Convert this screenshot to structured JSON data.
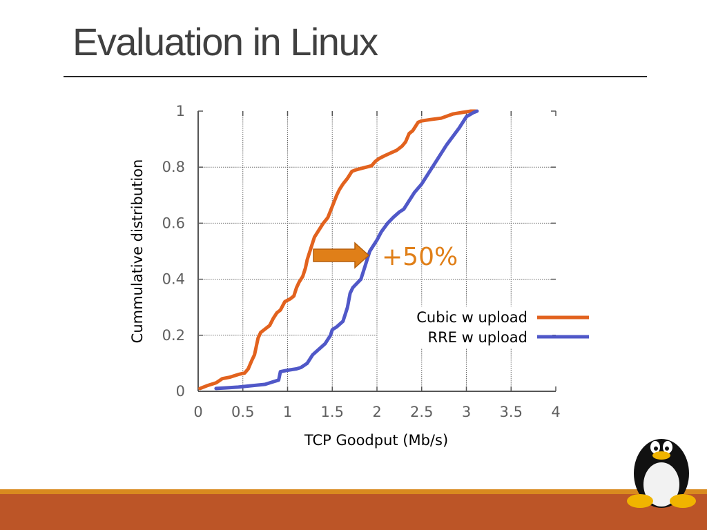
{
  "slide": {
    "title": "Evaluation in Linux"
  },
  "colors": {
    "accent_orange": "#e2621e",
    "series_blue": "#5058c8",
    "arrow": "#e07f18",
    "footer_band": "#bc5527",
    "footer_thin": "#d98a1f"
  },
  "annotation": {
    "text": "+50%",
    "icon": "right-arrow-icon"
  },
  "logo": {
    "name": "tux-penguin-icon"
  },
  "chart_data": {
    "type": "line",
    "title": "",
    "xlabel": "TCP Goodput (Mb/s)",
    "ylabel": "Cummulative distribution",
    "xlim": [
      0,
      4
    ],
    "ylim": [
      0,
      1
    ],
    "xticks": [
      "0",
      "0.5",
      "1",
      "1.5",
      "2",
      "2.5",
      "3",
      "3.5",
      "4"
    ],
    "yticks": [
      "0",
      "0.2",
      "0.4",
      "0.6",
      "0.8",
      "1"
    ],
    "grid": true,
    "legend": "right",
    "series": [
      {
        "name": "Cubic w upload",
        "color": "#e2621e",
        "x": [
          0.02,
          0.1,
          0.2,
          0.27,
          0.35,
          0.45,
          0.52,
          0.56,
          0.6,
          0.63,
          0.67,
          0.7,
          0.74,
          0.8,
          0.84,
          0.88,
          0.92,
          0.97,
          1.03,
          1.07,
          1.1,
          1.13,
          1.17,
          1.2,
          1.22,
          1.25,
          1.27,
          1.3,
          1.34,
          1.4,
          1.45,
          1.5,
          1.55,
          1.58,
          1.62,
          1.67,
          1.72,
          1.76,
          1.82,
          1.88,
          1.94,
          1.98,
          2.02,
          2.08,
          2.15,
          2.22,
          2.28,
          2.32,
          2.36,
          2.4,
          2.46,
          2.5,
          2.6,
          2.72,
          2.85,
          2.95,
          3.05,
          3.1
        ],
        "y": [
          0.01,
          0.02,
          0.03,
          0.045,
          0.05,
          0.06,
          0.065,
          0.08,
          0.11,
          0.13,
          0.19,
          0.21,
          0.22,
          0.235,
          0.26,
          0.28,
          0.29,
          0.32,
          0.33,
          0.34,
          0.37,
          0.39,
          0.41,
          0.44,
          0.47,
          0.5,
          0.52,
          0.55,
          0.57,
          0.6,
          0.62,
          0.66,
          0.7,
          0.72,
          0.74,
          0.76,
          0.785,
          0.79,
          0.795,
          0.8,
          0.805,
          0.82,
          0.83,
          0.84,
          0.85,
          0.86,
          0.875,
          0.89,
          0.92,
          0.93,
          0.96,
          0.965,
          0.97,
          0.975,
          0.99,
          0.995,
          1.0,
          1.0
        ]
      },
      {
        "name": "RRE w upload",
        "color": "#5058c8",
        "x": [
          0.2,
          0.3,
          0.45,
          0.6,
          0.75,
          0.85,
          0.9,
          0.92,
          1.0,
          1.1,
          1.15,
          1.22,
          1.28,
          1.35,
          1.42,
          1.48,
          1.5,
          1.55,
          1.62,
          1.67,
          1.7,
          1.73,
          1.76,
          1.82,
          1.86,
          1.9,
          1.92,
          1.96,
          2.0,
          2.05,
          2.12,
          2.18,
          2.25,
          2.3,
          2.36,
          2.42,
          2.5,
          2.56,
          2.62,
          2.68,
          2.72,
          2.78,
          2.85,
          2.92,
          3.0,
          3.08,
          3.12
        ],
        "y": [
          0.01,
          0.012,
          0.015,
          0.02,
          0.025,
          0.035,
          0.04,
          0.07,
          0.075,
          0.08,
          0.085,
          0.1,
          0.13,
          0.15,
          0.17,
          0.2,
          0.22,
          0.23,
          0.25,
          0.3,
          0.35,
          0.37,
          0.38,
          0.4,
          0.44,
          0.48,
          0.5,
          0.52,
          0.54,
          0.57,
          0.6,
          0.62,
          0.64,
          0.65,
          0.68,
          0.71,
          0.74,
          0.77,
          0.8,
          0.83,
          0.85,
          0.88,
          0.91,
          0.94,
          0.98,
          0.995,
          1.0
        ]
      }
    ]
  }
}
